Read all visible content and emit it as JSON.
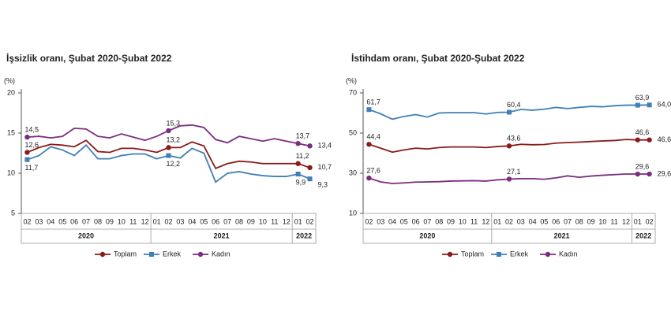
{
  "chart_data": [
    {
      "type": "line",
      "title": "İşsizlik oranı, Şubat 2020-Şubat 2022",
      "y_label": "(%)",
      "categories": [
        "02",
        "03",
        "04",
        "05",
        "06",
        "07",
        "08",
        "09",
        "10",
        "11",
        "12",
        "01",
        "02",
        "03",
        "04",
        "05",
        "06",
        "07",
        "08",
        "09",
        "10",
        "11",
        "12",
        "01",
        "02"
      ],
      "year_labels": [
        "2020",
        "2021",
        "2022"
      ],
      "ylim": [
        5,
        20
      ],
      "yticks": [
        5,
        10,
        15,
        20
      ],
      "grid": false,
      "series": [
        {
          "name": "Toplam",
          "color": "#8b1a1a",
          "marker": "circle",
          "values": [
            12.6,
            13.2,
            13.6,
            13.5,
            13.3,
            14.1,
            12.7,
            12.6,
            13.1,
            13.1,
            12.9,
            12.6,
            13.2,
            13.2,
            13.9,
            13.4,
            10.6,
            11.2,
            11.5,
            11.4,
            11.2,
            11.2,
            11.2,
            11.2,
            10.7
          ],
          "value_labels": [
            "12,6",
            null,
            null,
            null,
            null,
            null,
            null,
            null,
            null,
            null,
            null,
            null,
            "13,2",
            null,
            null,
            null,
            null,
            null,
            null,
            null,
            null,
            null,
            null,
            "11,2",
            "10,7"
          ]
        },
        {
          "name": "Erkek",
          "color": "#3f7fb5",
          "marker": "square",
          "values": [
            11.7,
            12.2,
            13.3,
            12.9,
            12.2,
            13.5,
            11.8,
            11.8,
            12.2,
            12.4,
            12.4,
            11.8,
            12.2,
            11.9,
            13.1,
            12.5,
            8.9,
            10.0,
            10.2,
            9.9,
            9.7,
            9.6,
            9.6,
            9.9,
            9.3
          ],
          "value_labels": [
            "11,7",
            null,
            null,
            null,
            null,
            null,
            null,
            null,
            null,
            null,
            null,
            null,
            "12,2",
            null,
            null,
            null,
            null,
            null,
            null,
            null,
            null,
            null,
            null,
            "9,9",
            "9,3"
          ]
        },
        {
          "name": "Kadın",
          "color": "#7b2d7f",
          "marker": "circle",
          "values": [
            14.5,
            14.6,
            14.4,
            14.6,
            15.6,
            15.5,
            14.6,
            14.4,
            14.9,
            14.5,
            14.1,
            14.6,
            15.3,
            15.9,
            16.0,
            15.7,
            14.2,
            13.8,
            14.6,
            14.3,
            14.0,
            14.3,
            14.0,
            13.7,
            13.4
          ],
          "value_labels": [
            "14,5",
            null,
            null,
            null,
            null,
            null,
            null,
            null,
            null,
            null,
            null,
            null,
            "15,3",
            null,
            null,
            null,
            null,
            null,
            null,
            null,
            null,
            null,
            null,
            "13,7",
            "13,4"
          ]
        }
      ]
    },
    {
      "type": "line",
      "title": "İstihdam oranı, Şubat 2020-Şubat 2022",
      "y_label": "(%)",
      "categories": [
        "02",
        "03",
        "04",
        "05",
        "06",
        "07",
        "08",
        "09",
        "10",
        "11",
        "12",
        "01",
        "02",
        "03",
        "04",
        "05",
        "06",
        "07",
        "08",
        "09",
        "10",
        "11",
        "12",
        "01",
        "02"
      ],
      "year_labels": [
        "2020",
        "2021",
        "2022"
      ],
      "ylim": [
        10,
        70
      ],
      "yticks": [
        10,
        30,
        50,
        70
      ],
      "grid": false,
      "series": [
        {
          "name": "Toplam",
          "color": "#8b1a1a",
          "marker": "circle",
          "values": [
            44.4,
            42.5,
            40.5,
            41.6,
            42.5,
            42.1,
            42.8,
            43.1,
            43.1,
            43.1,
            42.8,
            43.3,
            43.6,
            44.4,
            44.2,
            44.3,
            45.0,
            45.3,
            45.5,
            45.8,
            46.1,
            46.3,
            46.8,
            46.6,
            46.6
          ],
          "value_labels": [
            "44,4",
            null,
            null,
            null,
            null,
            null,
            null,
            null,
            null,
            null,
            null,
            null,
            "43,6",
            null,
            null,
            null,
            null,
            null,
            null,
            null,
            null,
            null,
            null,
            "46,6",
            "46,6"
          ]
        },
        {
          "name": "Erkek",
          "color": "#3f7fb5",
          "marker": "square",
          "values": [
            61.7,
            59.6,
            56.9,
            58.3,
            59.2,
            58.0,
            60.0,
            60.2,
            60.2,
            60.2,
            59.5,
            60.3,
            60.4,
            61.8,
            61.4,
            61.9,
            62.8,
            62.2,
            62.8,
            63.3,
            63.1,
            63.6,
            63.9,
            63.9,
            64.0
          ],
          "value_labels": [
            "61,7",
            null,
            null,
            null,
            null,
            null,
            null,
            null,
            null,
            null,
            null,
            null,
            "60,4",
            null,
            null,
            null,
            null,
            null,
            null,
            null,
            null,
            null,
            null,
            "63,9",
            "64,0"
          ]
        },
        {
          "name": "Kadın",
          "color": "#7b2d7f",
          "marker": "circle",
          "values": [
            27.6,
            25.7,
            24.9,
            25.2,
            25.6,
            25.7,
            25.8,
            26.1,
            26.2,
            26.3,
            26.1,
            26.7,
            27.1,
            27.3,
            27.3,
            27.0,
            27.7,
            28.7,
            28.0,
            28.6,
            29.0,
            29.3,
            29.6,
            29.6,
            29.6
          ],
          "value_labels": [
            "27,6",
            null,
            null,
            null,
            null,
            null,
            null,
            null,
            null,
            null,
            null,
            null,
            "27,1",
            null,
            null,
            null,
            null,
            null,
            null,
            null,
            null,
            null,
            null,
            "29,6",
            "29,6"
          ]
        }
      ]
    }
  ]
}
